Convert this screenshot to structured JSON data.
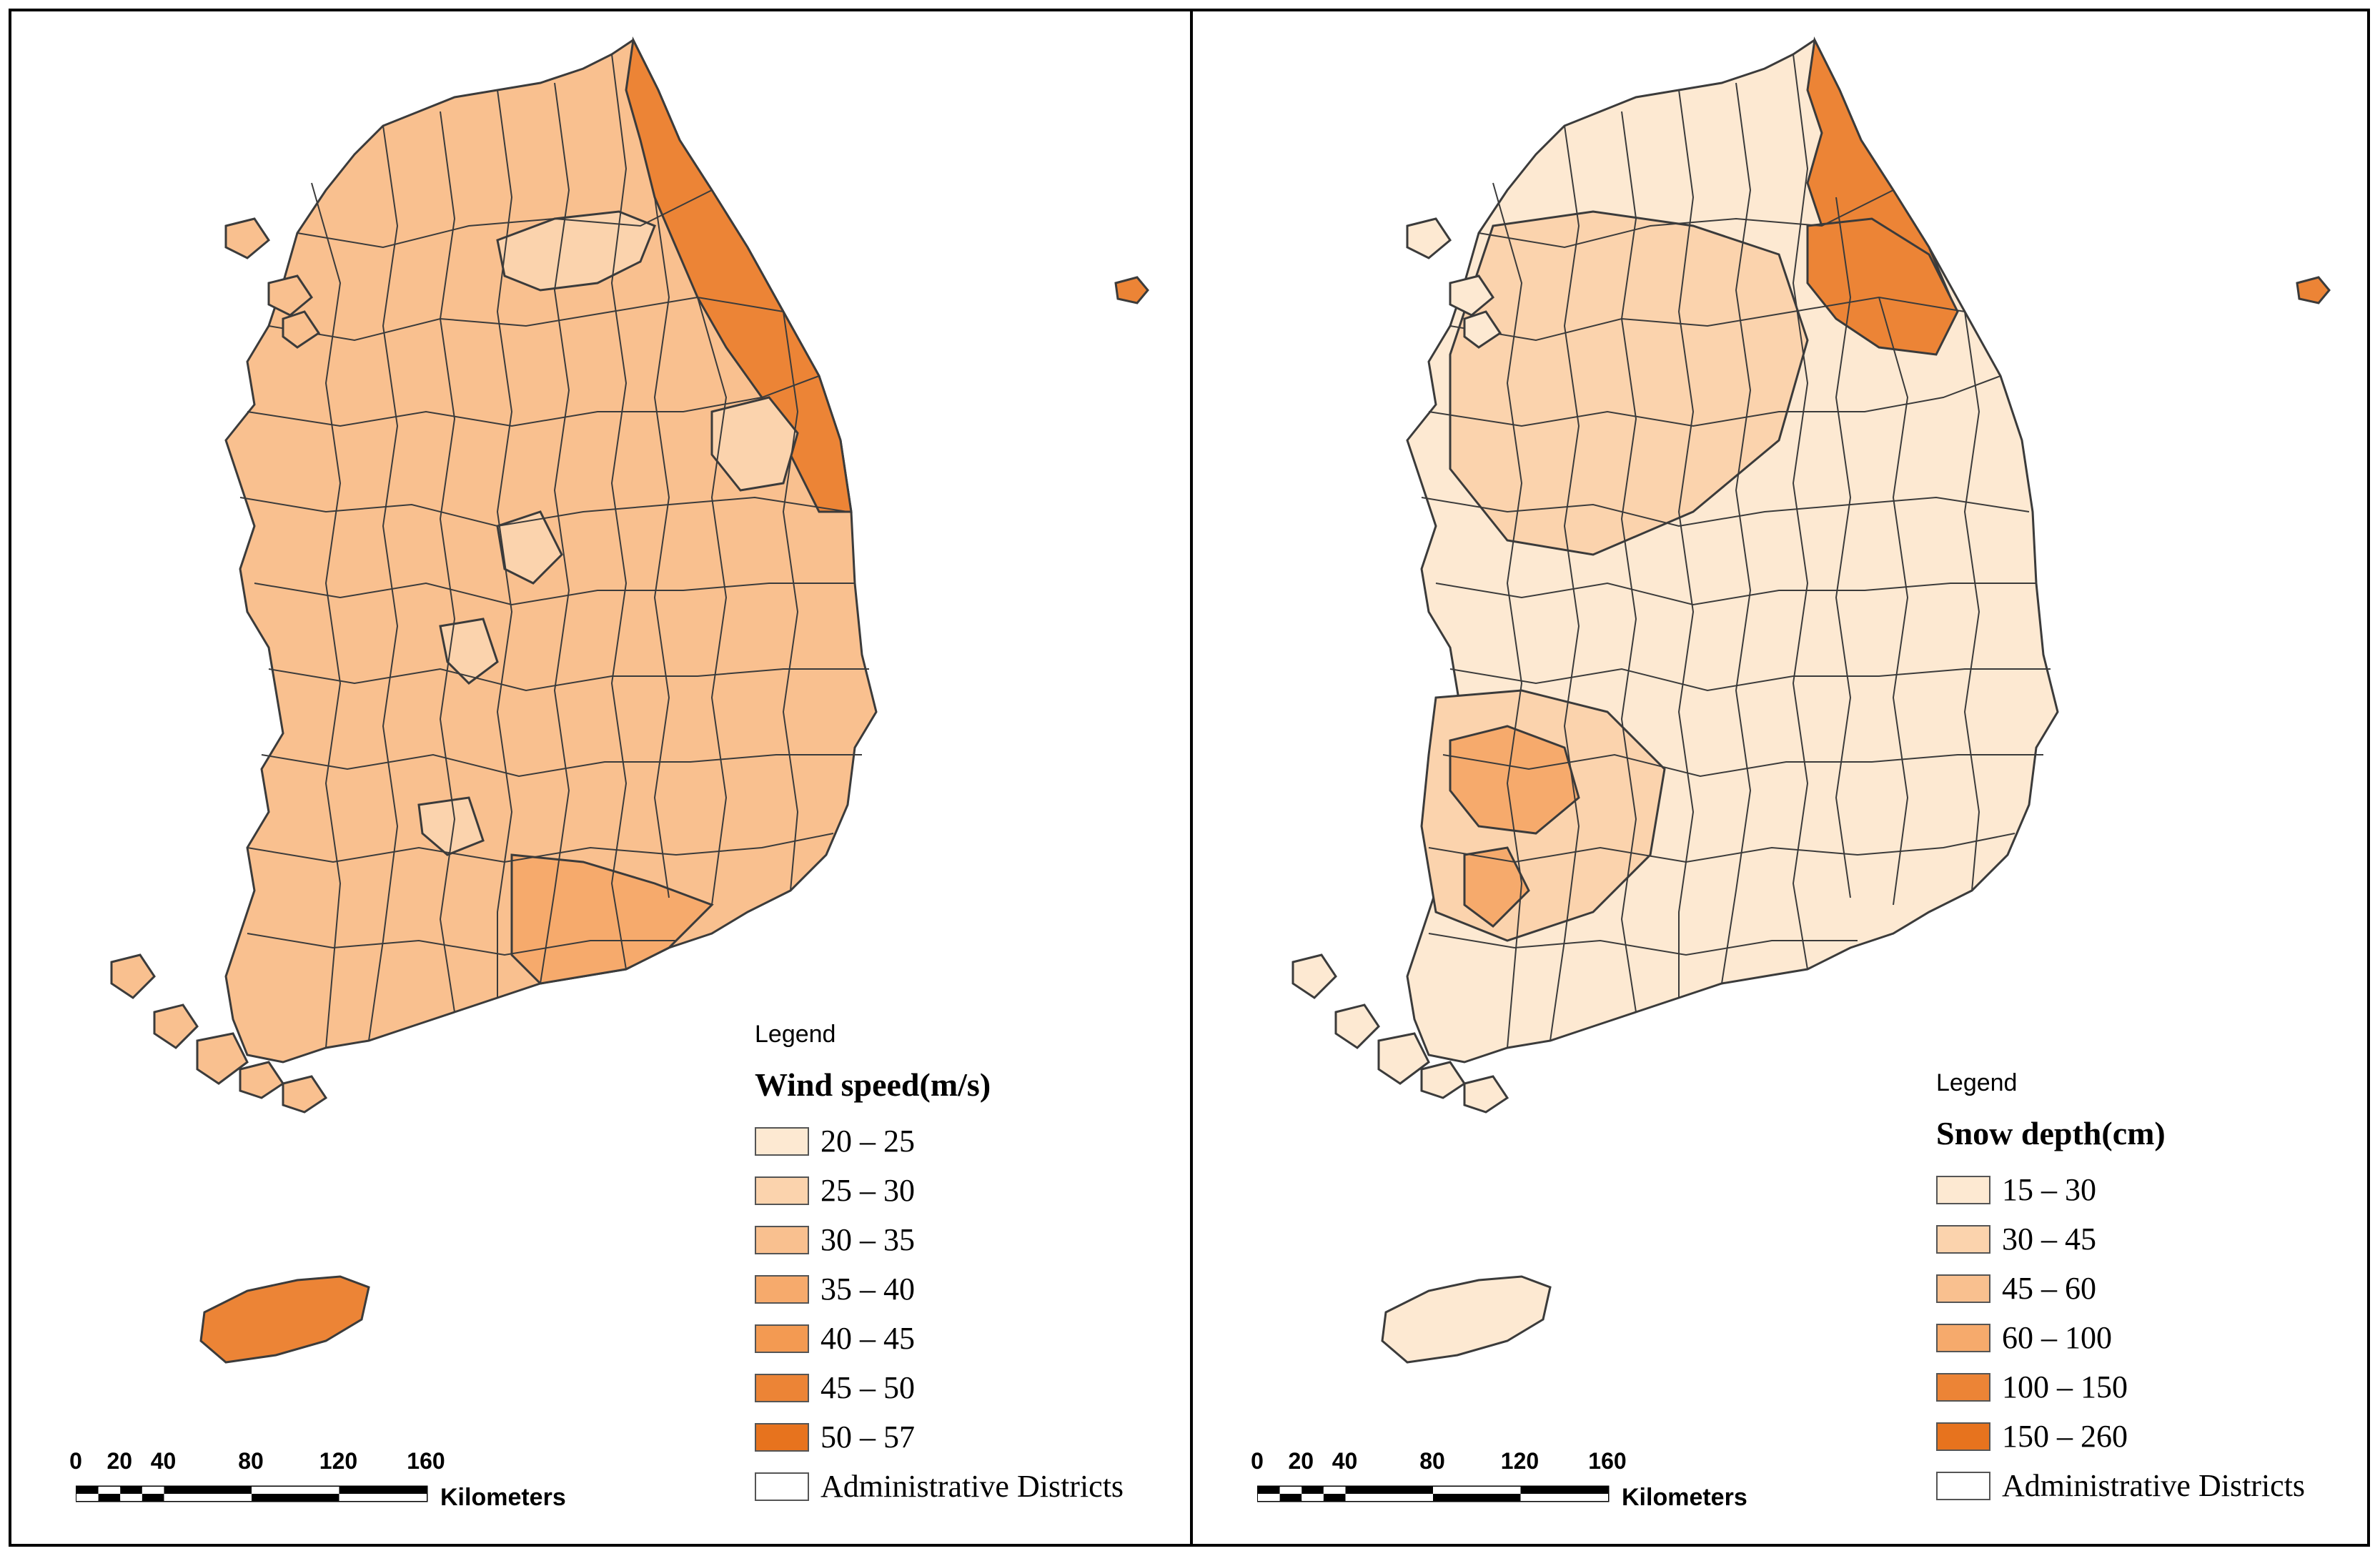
{
  "colors": {
    "class1": "#fde9d2",
    "class2": "#fbd3ad",
    "class3": "#f9c08f",
    "class4": "#f6aa6c",
    "class5": "#f39a52",
    "class6": "#ec8436",
    "class7": "#e7731e",
    "border": "#3b3b3b",
    "admin": "#ffffff"
  },
  "maps": [
    {
      "legend_label": "Legend",
      "title": "Wind speed(m/s)",
      "classes": [
        {
          "label": "20 – 25",
          "color": "#fde9d2"
        },
        {
          "label": "25 – 30",
          "color": "#fbd3ad"
        },
        {
          "label": "30 – 35",
          "color": "#f9c08f"
        },
        {
          "label": "35 – 40",
          "color": "#f6aa6c"
        },
        {
          "label": "40 – 45",
          "color": "#f39a52"
        },
        {
          "label": "45 – 50",
          "color": "#ec8436"
        },
        {
          "label": "50 – 57",
          "color": "#e7731e"
        }
      ],
      "admin_label": "Administrative Districts",
      "mainland_fill": "#f9c08f",
      "east_coast_fill": "#ec8436",
      "jeju_fill": "#ec8436",
      "dokdo_fill": "#ec8436"
    },
    {
      "legend_label": "Legend",
      "title": "Snow depth(cm)",
      "classes": [
        {
          "label": "15 – 30",
          "color": "#fde9d2"
        },
        {
          "label": "30 – 45",
          "color": "#fbd3ad"
        },
        {
          "label": "45 – 60",
          "color": "#f9c08f"
        },
        {
          "label": "60 – 100",
          "color": "#f6aa6c"
        },
        {
          "label": "100 – 150",
          "color": "#ec8436"
        },
        {
          "label": "150 – 260",
          "color": "#e7731e"
        }
      ],
      "admin_label": "Administrative Districts",
      "mainland_fill": "#fde9d2",
      "east_coast_fill": "#ec8436",
      "jeju_fill": "#fde9d2",
      "dokdo_fill": "#ec8436"
    }
  ],
  "scale": {
    "ticks": [
      "0",
      "20",
      "40",
      "80",
      "120",
      "160"
    ],
    "unit": "Kilometers"
  }
}
